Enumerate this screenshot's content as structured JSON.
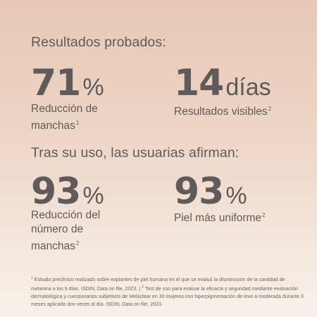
{
  "section1": {
    "title": "Resultados probados:",
    "stats": [
      {
        "value": "71",
        "unit": "%",
        "label_lines": [
          "Reducción de",
          "manchas"
        ],
        "sup": "1"
      },
      {
        "value": "14",
        "unit": "días",
        "label_lines": [
          "Resultados visibles"
        ],
        "sup": "2"
      }
    ]
  },
  "section2": {
    "title": "Tras su uso, las usuarias afirman:",
    "stats": [
      {
        "value": "93",
        "unit": "%",
        "label_lines": [
          "Reducción del",
          "número de",
          "manchas"
        ],
        "sup": "2"
      },
      {
        "value": "93",
        "unit": "%",
        "label_lines": [
          "Piel más uniforme"
        ],
        "sup": "2"
      }
    ]
  },
  "footnote": {
    "sup1": "1",
    "text1": " Estudio preclínico realizado sobre explantes de piel humana en el que se evaluó la disminución de la cantidad de melanina a los 9 días. ISDIN, Data on file, 2023. | ",
    "sup2": "2",
    "text2": " Test de uso para evaluar la eficacia y seguridad mediante evaluación dermatológica y cuestionarios subjetivos de Melaclear en 30 mujeres con hiperpigmentación de leve a moderada durante 3 meses aplicado dos veces al día. ISDIN, Data on file, 2023."
  },
  "colors": {
    "text": "#5f5b5a",
    "background_top": "#e7c8b6",
    "background_bottom": "#f8f0e9"
  }
}
